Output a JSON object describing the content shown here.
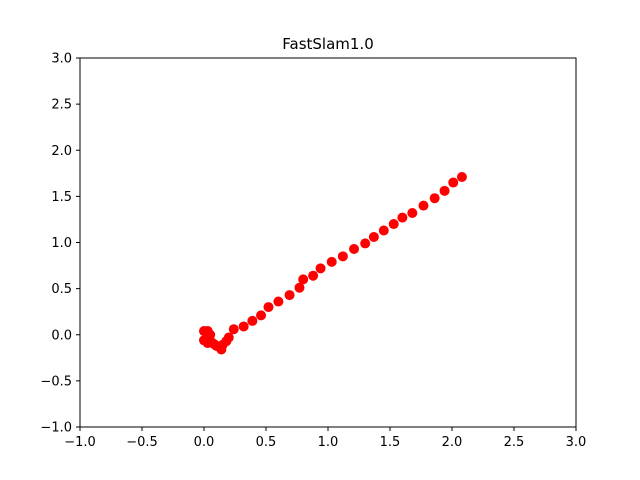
{
  "chart_data": {
    "type": "scatter",
    "title": "FastSlam1.0",
    "xlabel": "",
    "ylabel": "",
    "xlim": [
      -1.0,
      3.0
    ],
    "ylim": [
      -1.0,
      3.0
    ],
    "xticks": [
      "−1.0",
      "−0.5",
      "0.0",
      "0.5",
      "1.0",
      "1.5",
      "2.0",
      "2.5",
      "3.0"
    ],
    "yticks": [
      "−1.0",
      "−0.5",
      "0.0",
      "0.5",
      "1.0",
      "1.5",
      "2.0",
      "2.5",
      "3.0"
    ],
    "grid": false,
    "marker_color": "#ff0000",
    "series": [
      {
        "points": [
          [
            0.0,
            0.04
          ],
          [
            0.03,
            0.04
          ],
          [
            0.05,
            0.0
          ],
          [
            0.0,
            -0.06
          ],
          [
            0.02,
            -0.07
          ],
          [
            0.04,
            -0.05
          ],
          [
            0.06,
            -0.08
          ],
          [
            0.03,
            -0.09
          ],
          [
            0.08,
            -0.1
          ],
          [
            0.1,
            -0.12
          ],
          [
            0.12,
            -0.13
          ],
          [
            0.14,
            -0.16
          ],
          [
            0.15,
            -0.11
          ],
          [
            0.18,
            -0.07
          ],
          [
            0.2,
            -0.03
          ],
          [
            0.24,
            0.06
          ],
          [
            0.32,
            0.09
          ],
          [
            0.39,
            0.15
          ],
          [
            0.46,
            0.21
          ],
          [
            0.52,
            0.3
          ],
          [
            0.6,
            0.36
          ],
          [
            0.69,
            0.43
          ],
          [
            0.77,
            0.51
          ],
          [
            0.8,
            0.6
          ],
          [
            0.88,
            0.64
          ],
          [
            0.94,
            0.72
          ],
          [
            1.03,
            0.79
          ],
          [
            1.12,
            0.85
          ],
          [
            1.21,
            0.93
          ],
          [
            1.3,
            0.99
          ],
          [
            1.37,
            1.06
          ],
          [
            1.45,
            1.13
          ],
          [
            1.53,
            1.2
          ],
          [
            1.6,
            1.27
          ],
          [
            1.68,
            1.32
          ],
          [
            1.77,
            1.4
          ],
          [
            1.86,
            1.48
          ],
          [
            1.94,
            1.56
          ],
          [
            2.01,
            1.65
          ],
          [
            2.08,
            1.71
          ]
        ]
      }
    ]
  }
}
